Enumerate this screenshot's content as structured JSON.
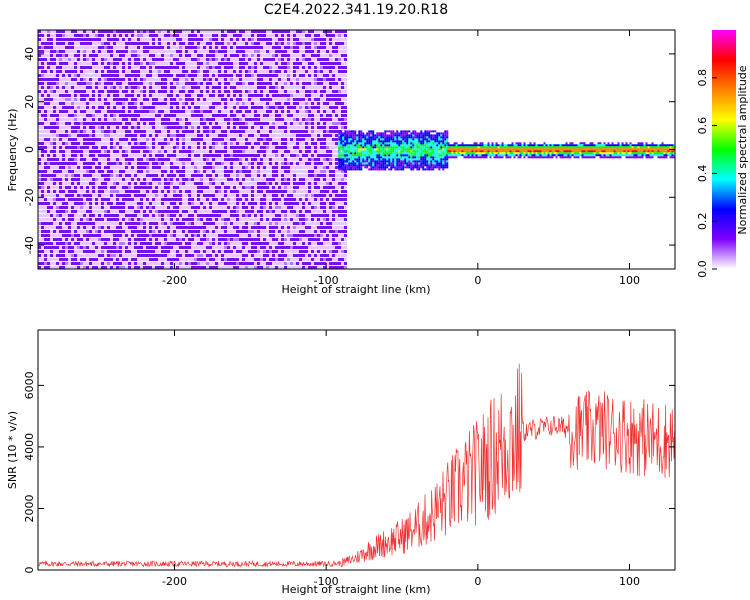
{
  "title": "C2E4.2022.341.19.20.R18",
  "chart_data": [
    {
      "type": "heatmap",
      "xlabel": "Height of straight line (km)",
      "ylabel": "Frequency (Hz)",
      "xlim": [
        -290,
        130
      ],
      "ylim": [
        -50,
        50
      ],
      "xticks": [
        -200,
        -100,
        0,
        100
      ],
      "xtick_labels": [
        "-200",
        "-100",
        "0",
        "100"
      ],
      "yticks": [
        -40,
        -20,
        0,
        20,
        40
      ],
      "ytick_labels": [
        "-40",
        "-20",
        "0",
        "20",
        "40"
      ],
      "colorbar": {
        "label": "Normalized spectral amplitude",
        "range": [
          0,
          1
        ],
        "ticks": [
          0,
          0.2,
          0.4,
          0.6,
          0.8
        ],
        "tick_labels": [
          "0.0",
          "0.2",
          "0.4",
          "0.6",
          "0.8"
        ],
        "colors": [
          "#ffffff",
          "#8000ff",
          "#0000ff",
          "#00ffff",
          "#00ff00",
          "#ffff00",
          "#ff8000",
          "#ff0000",
          "#ff00ff"
        ]
      },
      "regions": [
        {
          "x": [
            -290,
            -88
          ],
          "freq": [
            -50,
            50
          ],
          "amplitude": 0.1
        },
        {
          "x": [
            -92,
            -20
          ],
          "freq": [
            -8,
            8
          ],
          "amplitude": 0.35
        },
        {
          "x": [
            -20,
            130
          ],
          "freq": [
            -3,
            3
          ],
          "amplitude": 0.85
        }
      ]
    },
    {
      "type": "line",
      "xlabel": "Height of straight line (km)",
      "ylabel": "SNR (10 * v/v)",
      "xlim": [
        -290,
        130
      ],
      "ylim": [
        0,
        7800
      ],
      "xticks": [
        -200,
        -100,
        0,
        100
      ],
      "xtick_labels": [
        "-200",
        "-100",
        "0",
        "100"
      ],
      "yticks": [
        0,
        2000,
        4000,
        6000
      ],
      "ytick_labels": [
        "0",
        "2000",
        "4000",
        "6000"
      ],
      "series_color": "#f03030",
      "x": [
        -290,
        -250,
        -200,
        -150,
        -100,
        -90,
        -80,
        -70,
        -60,
        -50,
        -40,
        -30,
        -20,
        -10,
        0,
        10,
        20,
        30,
        40,
        50,
        60,
        70,
        80,
        90,
        100,
        110,
        120,
        130
      ],
      "y": [
        200,
        200,
        200,
        200,
        200,
        220,
        400,
        700,
        900,
        1100,
        1400,
        1800,
        2300,
        2800,
        3200,
        3700,
        4200,
        4500,
        4600,
        4700,
        4600,
        4500,
        4600,
        4500,
        4400,
        4300,
        4200,
        4300
      ]
    }
  ]
}
